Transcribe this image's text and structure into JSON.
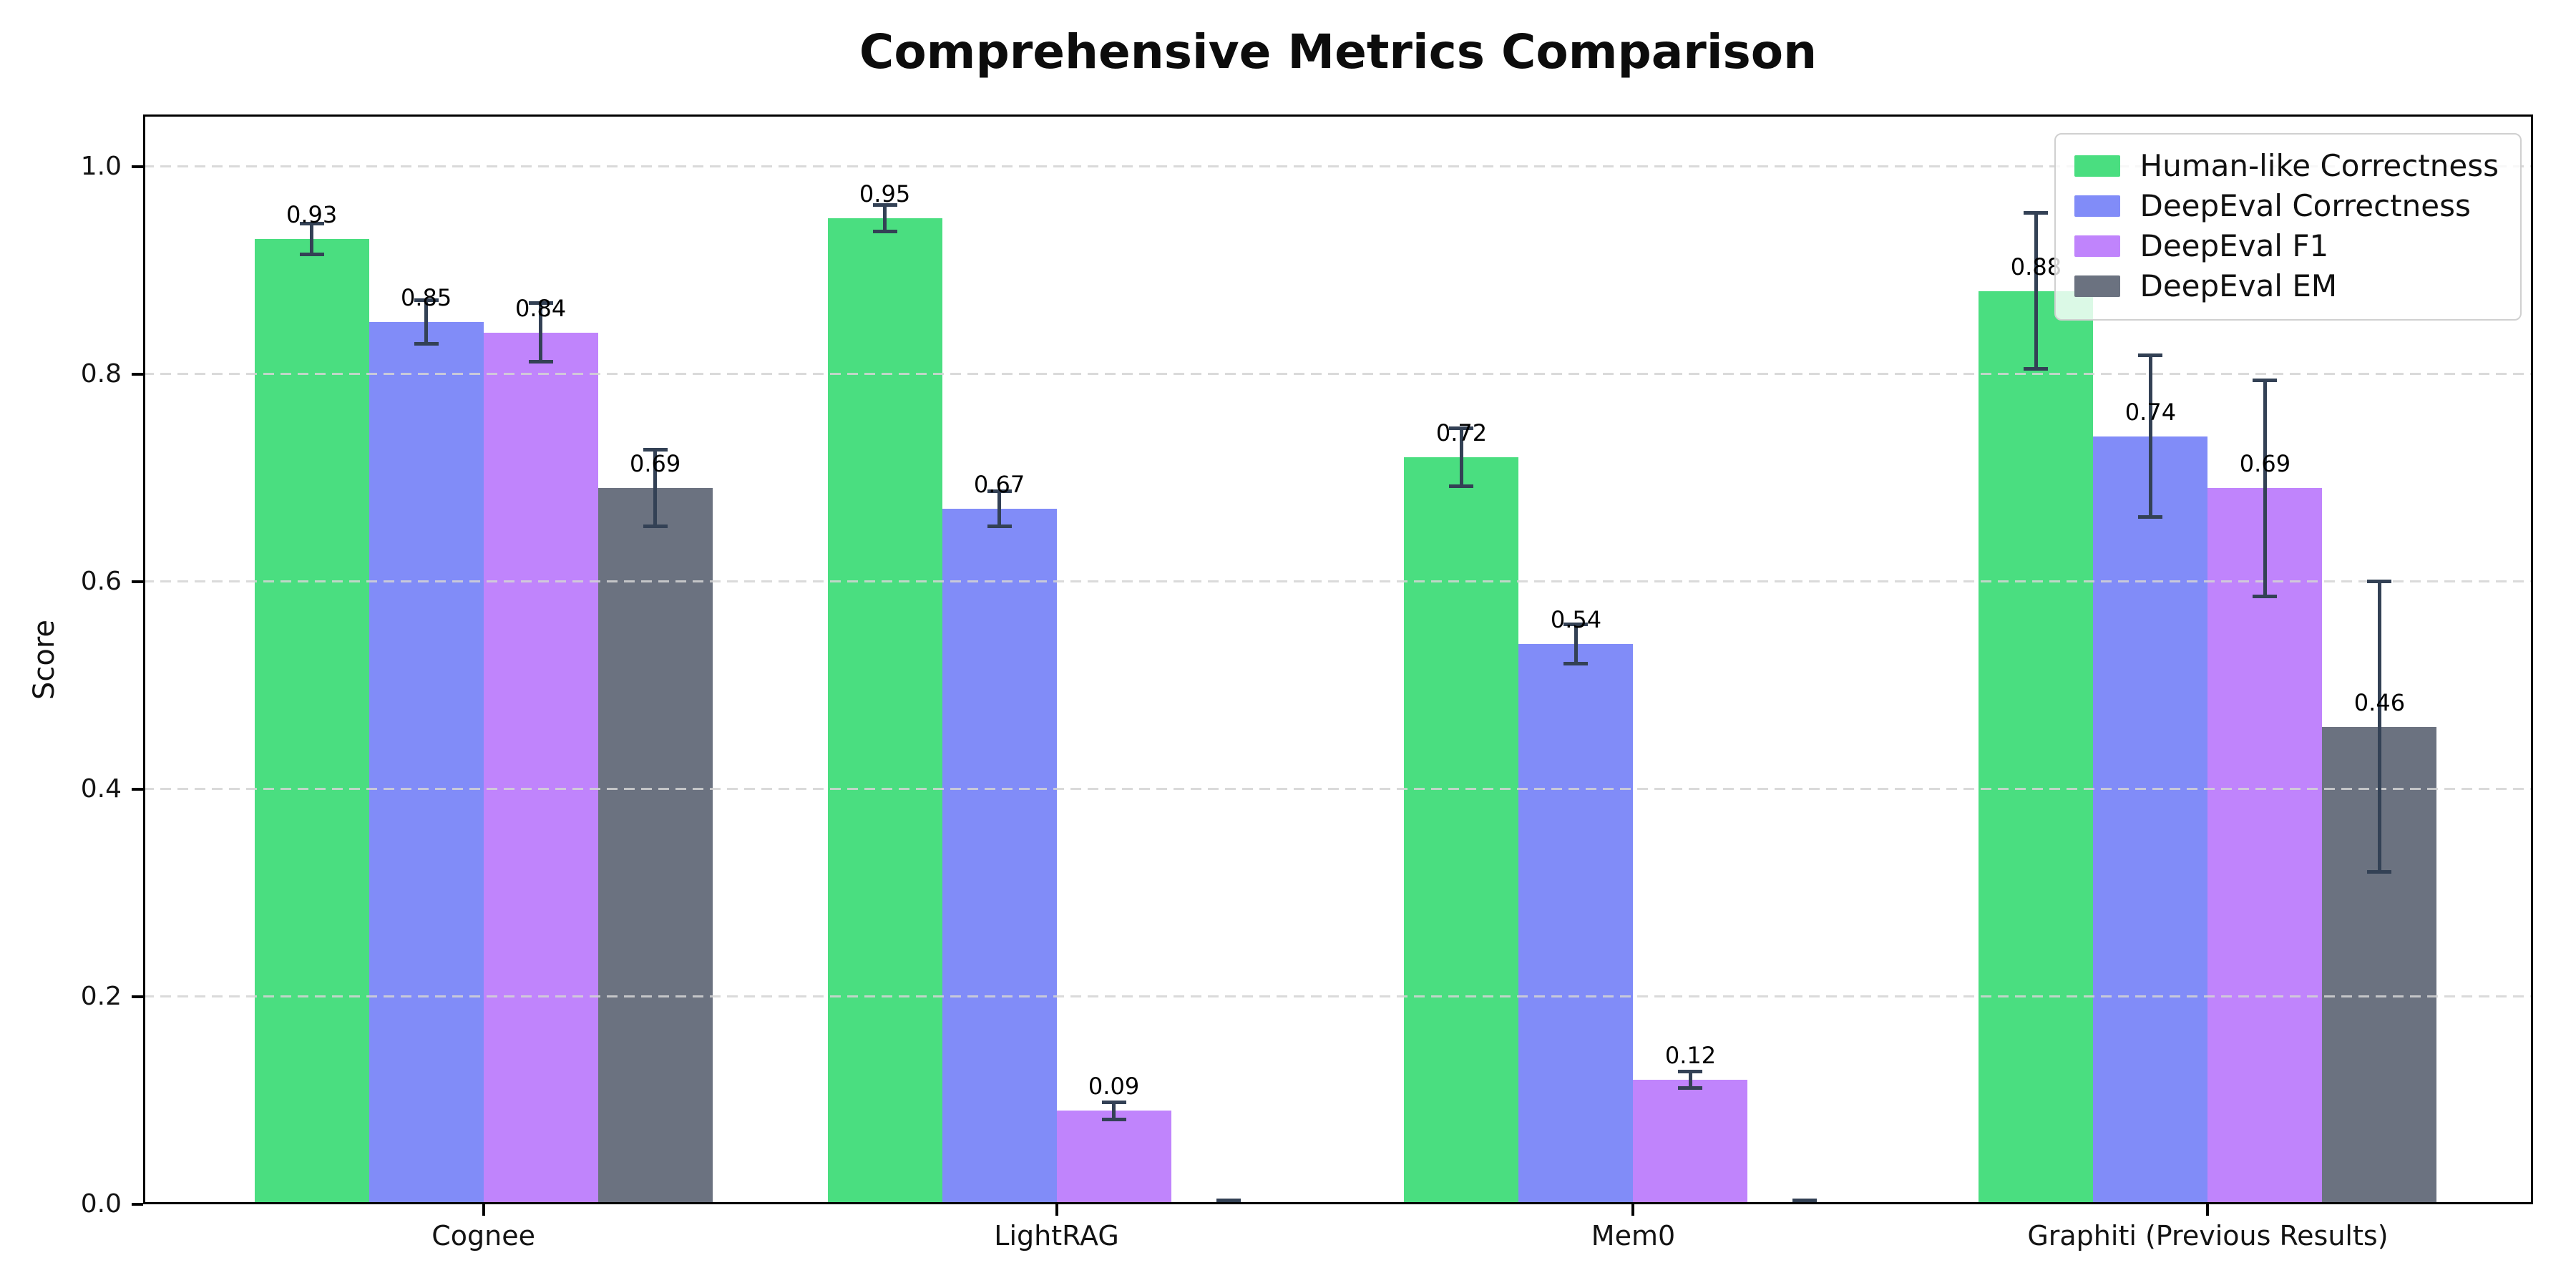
{
  "page": {
    "background": "#ffffff"
  },
  "chart_data": {
    "type": "bar",
    "title": "Comprehensive Metrics Comparison",
    "ylabel": "Score",
    "xlabel": "",
    "ylim": [
      0,
      1.05
    ],
    "ytick_labels": [
      "0.0",
      "0.2",
      "0.4",
      "0.6",
      "0.8",
      "1.0"
    ],
    "grid": "horizontal-dashed",
    "grid_color": "#d4d4d4",
    "axis_color": "#000000",
    "error_bar_color": "#334155",
    "legend_position": "upper-right",
    "categories": [
      "Cognee",
      "LightRAG",
      "Mem0",
      "Graphiti (Previous Results)"
    ],
    "series": [
      {
        "name": "Human-like Correctness",
        "color": "#4ade80",
        "values": [
          0.93,
          0.95,
          0.72,
          0.88
        ],
        "errors": [
          0.015,
          0.013,
          0.028,
          0.075
        ],
        "labels": [
          "0.93",
          "0.95",
          "0.72",
          "0.88"
        ]
      },
      {
        "name": "DeepEval Correctness",
        "color": "#818cf8",
        "values": [
          0.85,
          0.67,
          0.54,
          0.74
        ],
        "errors": [
          0.021,
          0.017,
          0.019,
          0.078
        ],
        "labels": [
          "0.85",
          "0.67",
          "0.54",
          "0.74"
        ]
      },
      {
        "name": "DeepEval F1",
        "color": "#c084fc",
        "values": [
          0.84,
          0.09,
          0.12,
          0.69
        ],
        "errors": [
          0.028,
          0.008,
          0.008,
          0.104
        ],
        "labels": [
          "0.84",
          "0.09",
          "0.12",
          "0.69"
        ]
      },
      {
        "name": "DeepEval EM",
        "color": "#6b7280",
        "values": [
          0.69,
          0.0,
          0.0,
          0.46
        ],
        "errors": [
          0.037,
          0.004,
          0.004,
          0.14
        ],
        "labels": [
          "0.69",
          "",
          "",
          "0.46"
        ]
      }
    ]
  }
}
